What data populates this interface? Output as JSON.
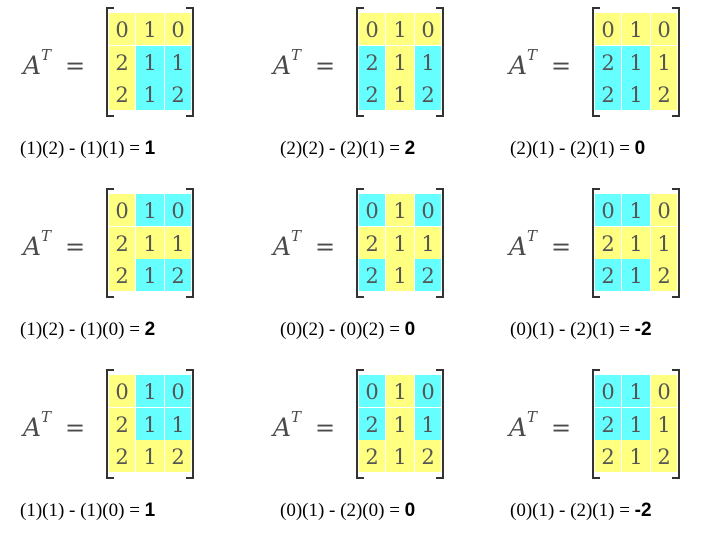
{
  "matrix": {
    "name": "A",
    "superscript": "T",
    "equals": "=",
    "rows": [
      [
        "0",
        "1",
        "0"
      ],
      [
        "2",
        "1",
        "1"
      ],
      [
        "2",
        "1",
        "2"
      ]
    ]
  },
  "colors": {
    "yellow": "#ffff80",
    "cyan": "#66ffff"
  },
  "cofactors": [
    {
      "expr": "(1)(2) - (1)(1) = ",
      "result": "1",
      "row": 0,
      "col": 0
    },
    {
      "expr": "(2)(2) - (2)(1) = ",
      "result": "2",
      "row": 0,
      "col": 1
    },
    {
      "expr": "(2)(1) - (2)(1) = ",
      "result": "0",
      "row": 0,
      "col": 2
    },
    {
      "expr": "(1)(2) - (1)(0) = ",
      "result": "2",
      "row": 1,
      "col": 0
    },
    {
      "expr": "(0)(2) - (0)(2) = ",
      "result": "0",
      "row": 1,
      "col": 1
    },
    {
      "expr": "(0)(1) - (2)(1) = ",
      "result": "-2",
      "row": 1,
      "col": 2
    },
    {
      "expr": "(1)(1) - (1)(0) = ",
      "result": "1",
      "row": 2,
      "col": 0
    },
    {
      "expr": "(0)(1) - (2)(0) = ",
      "result": "0",
      "row": 2,
      "col": 1
    },
    {
      "expr": "(0)(1) - (2)(1) = ",
      "result": "-2",
      "row": 2,
      "col": 2
    }
  ]
}
